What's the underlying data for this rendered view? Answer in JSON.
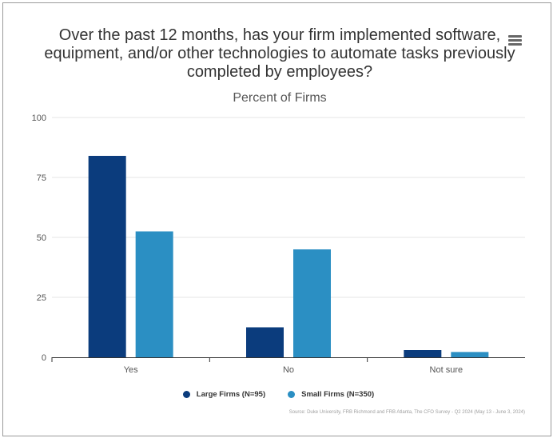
{
  "colors": {
    "large": "#0b3c7d",
    "small": "#2b8fc3",
    "grid": "#e6e6e6",
    "axis": "#333333"
  },
  "menu": {
    "icon": "hamburger-menu-icon"
  },
  "chart_data": {
    "type": "bar",
    "title": "Over the past 12 months, has your firm implemented software, equipment, and/or other technologies to automate tasks previously completed by employees?",
    "subtitle": "Percent of Firms",
    "categories": [
      "Yes",
      "No",
      "Not sure"
    ],
    "series": [
      {
        "name": "Large Firms (N=95)",
        "values": [
          84,
          12.5,
          3
        ]
      },
      {
        "name": "Small Firms (N=350)",
        "values": [
          52.5,
          45,
          2.2
        ]
      }
    ],
    "ylim": [
      0,
      100
    ],
    "yticks": [
      "0",
      "25",
      "50",
      "75",
      "100"
    ],
    "grid": true,
    "legend_position": "bottom-center",
    "source": "Source: Duke University, FRB Richmond and FRB Atlanta, The CFO Survey - Q2 2024 (May 13 - June 3, 2024)"
  }
}
